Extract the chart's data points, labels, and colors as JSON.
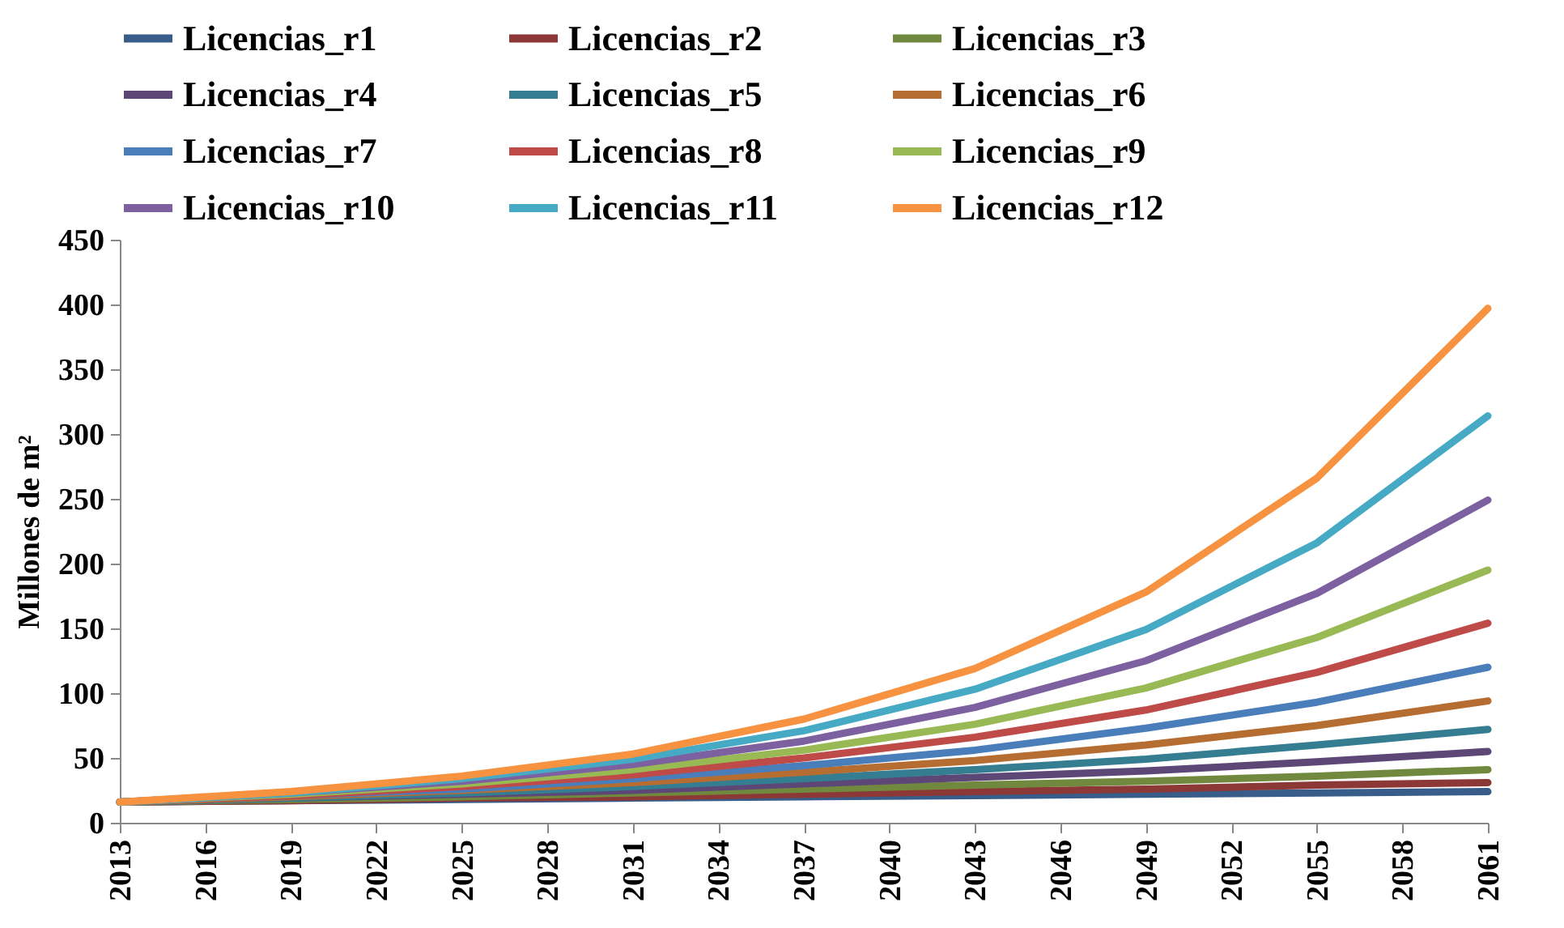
{
  "chart_data": {
    "type": "line",
    "ylabel": "Millones de m²",
    "x": [
      2013,
      2019,
      2025,
      2031,
      2037,
      2043,
      2049,
      2055,
      2061
    ],
    "xlim": [
      2013,
      2061
    ],
    "xticks": [
      2013,
      2016,
      2019,
      2022,
      2025,
      2028,
      2031,
      2034,
      2037,
      2040,
      2043,
      2046,
      2049,
      2052,
      2055,
      2058,
      2061
    ],
    "ylim": [
      0,
      450
    ],
    "yticks": [
      0,
      50,
      100,
      150,
      200,
      250,
      300,
      350,
      400,
      450
    ],
    "grid": false,
    "legend": "top",
    "marker": "none",
    "line_style": "solid",
    "series": [
      {
        "name": "Licencias_r1",
        "color": "#385d8a",
        "values": [
          16,
          17,
          18,
          19,
          20,
          21,
          22,
          23,
          24
        ]
      },
      {
        "name": "Licencias_r2",
        "color": "#8c3836",
        "values": [
          16,
          17,
          19,
          20,
          22,
          24,
          26,
          29,
          31
        ]
      },
      {
        "name": "Licencias_r3",
        "color": "#71893f",
        "values": [
          16,
          18,
          20,
          23,
          26,
          29,
          32,
          36,
          41
        ]
      },
      {
        "name": "Licencias_r4",
        "color": "#5c4776",
        "values": [
          16,
          19,
          22,
          25,
          30,
          35,
          40,
          47,
          55
        ]
      },
      {
        "name": "Licencias_r5",
        "color": "#357d91",
        "values": [
          16,
          19,
          23,
          28,
          34,
          41,
          49,
          60,
          72
        ]
      },
      {
        "name": "Licencias_r6",
        "color": "#b66d31",
        "values": [
          16,
          20,
          25,
          31,
          39,
          48,
          60,
          75,
          94
        ]
      },
      {
        "name": "Licencias_r7",
        "color": "#4a7ebb",
        "values": [
          16,
          21,
          26,
          34,
          44,
          56,
          73,
          93,
          120
        ]
      },
      {
        "name": "Licencias_r8",
        "color": "#be4b48",
        "values": [
          16,
          21,
          28,
          37,
          50,
          66,
          87,
          116,
          154
        ]
      },
      {
        "name": "Licencias_r9",
        "color": "#98b954",
        "values": [
          16,
          22,
          30,
          41,
          56,
          76,
          104,
          143,
          195
        ]
      },
      {
        "name": "Licencias_r10",
        "color": "#7d60a0",
        "values": [
          16,
          23,
          32,
          45,
          63,
          89,
          125,
          177,
          249
        ]
      },
      {
        "name": "Licencias_r11",
        "color": "#46aac5",
        "values": [
          16,
          23,
          34,
          49,
          71,
          103,
          149,
          216,
          314
        ]
      },
      {
        "name": "Licencias_r12",
        "color": "#f69240",
        "values": [
          16,
          24,
          36,
          53,
          80,
          119,
          178,
          266,
          397
        ]
      }
    ]
  }
}
